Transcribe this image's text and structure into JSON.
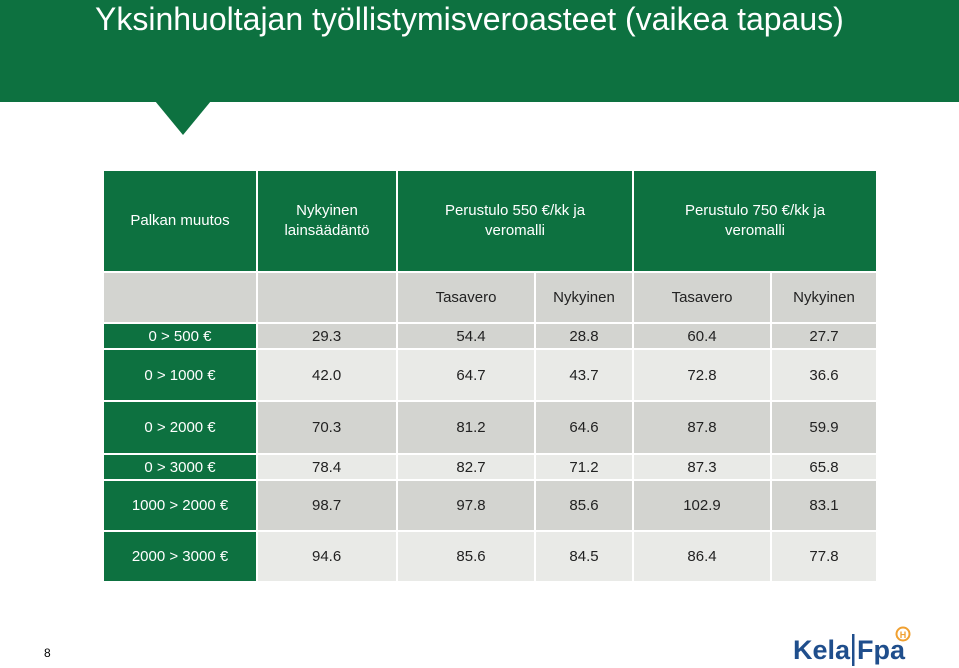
{
  "title": "Yksinhuoltajan työllistymisveroasteet (vaikea tapaus)",
  "table": {
    "headers": [
      "Palkan muutos",
      "Nykyinen lainsäädäntö",
      "Perustulo 550 €/kk ja veromalli",
      "Perustulo 750 €/kk ja veromalli"
    ],
    "subheaders": [
      "Tasavero",
      "Nykyinen",
      "Tasavero",
      "Nykyinen"
    ],
    "rows": [
      {
        "label": "0 > 500 €",
        "values": [
          "29.3",
          "54.4",
          "28.8",
          "60.4",
          "27.7"
        ]
      },
      {
        "label": "0 > 1000 €",
        "values": [
          "42.0",
          "64.7",
          "43.7",
          "72.8",
          "36.6"
        ]
      },
      {
        "label": "0 > 2000 €",
        "values": [
          "70.3",
          "81.2",
          "64.6",
          "87.8",
          "59.9"
        ]
      },
      {
        "label": "0 > 3000 €",
        "values": [
          "78.4",
          "82.7",
          "71.2",
          "87.3",
          "65.8"
        ]
      },
      {
        "label": "1000 > 2000 €",
        "values": [
          "98.7",
          "97.8",
          "85.6",
          "102.9",
          "83.1"
        ]
      },
      {
        "label": "2000 > 3000 €",
        "values": [
          "94.6",
          "85.6",
          "84.5",
          "86.4",
          "77.8"
        ]
      }
    ]
  },
  "page_number": "8",
  "logo": {
    "text_left": "Kela",
    "text_right": "Fpa",
    "badge": "H",
    "brand_color": "#1f4e8c",
    "accent_color": "#f0a030"
  },
  "colors": {
    "header_green": "#0d7140",
    "row_dark": "#d3d4d0",
    "row_light": "#e9eae7"
  }
}
